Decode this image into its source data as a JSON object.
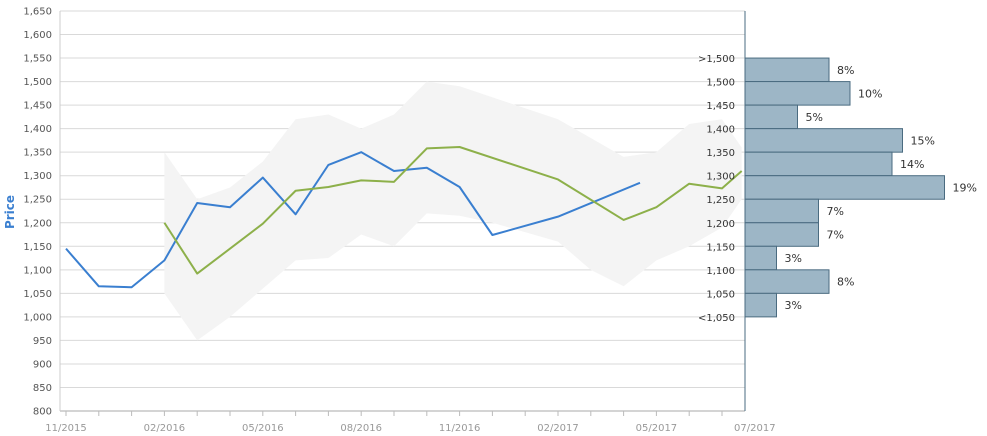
{
  "chart_data": {
    "type": "line",
    "ylabel": "Price",
    "ylim": [
      800,
      1650
    ],
    "yticks": [
      800,
      850,
      900,
      950,
      1000,
      1050,
      1100,
      1150,
      1200,
      1250,
      1300,
      1350,
      1400,
      1450,
      1500,
      1550,
      1600,
      1650
    ],
    "ytick_labels": [
      "800",
      "850",
      "900",
      "950",
      "1,000",
      "1,050",
      "1,100",
      "1,150",
      "1,200",
      "1,250",
      "1,300",
      "1,350",
      "1,400",
      "1,450",
      "1,500",
      "1,550",
      "1,600",
      "1,650"
    ],
    "xlim": [
      0,
      20
    ],
    "xticks": [
      {
        "x": 0,
        "label": "11/2015"
      },
      {
        "x": 3,
        "label": "02/2016"
      },
      {
        "x": 6,
        "label": "05/2016"
      },
      {
        "x": 9,
        "label": "08/2016"
      },
      {
        "x": 12,
        "label": "11/2016"
      },
      {
        "x": 15,
        "label": "02/2017"
      },
      {
        "x": 18,
        "label": "05/2017"
      },
      {
        "x": 21,
        "label": "07/2017"
      }
    ],
    "series": [
      {
        "color": "#3a7fd0",
        "points": [
          {
            "x": 0,
            "y": 1145
          },
          {
            "x": 1,
            "y": 1065
          },
          {
            "x": 2,
            "y": 1063
          },
          {
            "x": 3,
            "y": 1120
          },
          {
            "x": 4,
            "y": 1242
          },
          {
            "x": 5,
            "y": 1233
          },
          {
            "x": 6,
            "y": 1296
          },
          {
            "x": 7,
            "y": 1218
          },
          {
            "x": 8,
            "y": 1323
          },
          {
            "x": 9,
            "y": 1350
          },
          {
            "x": 10,
            "y": 1310
          },
          {
            "x": 11,
            "y": 1317
          },
          {
            "x": 12,
            "y": 1276
          },
          {
            "x": 13,
            "y": 1174
          },
          {
            "x": 15,
            "y": 1213
          },
          {
            "x": 17.5,
            "y": 1285
          }
        ]
      },
      {
        "color": "#8db04a",
        "points": [
          {
            "x": 3,
            "y": 1200
          },
          {
            "x": 4,
            "y": 1092
          },
          {
            "x": 6,
            "y": 1198
          },
          {
            "x": 7,
            "y": 1268
          },
          {
            "x": 8,
            "y": 1276
          },
          {
            "x": 9,
            "y": 1290
          },
          {
            "x": 10,
            "y": 1287
          },
          {
            "x": 11,
            "y": 1358
          },
          {
            "x": 12,
            "y": 1361
          },
          {
            "x": 15,
            "y": 1292
          },
          {
            "x": 17,
            "y": 1206
          },
          {
            "x": 18,
            "y": 1233
          },
          {
            "x": 19,
            "y": 1283
          },
          {
            "x": 20,
            "y": 1273
          },
          {
            "x": 20.6,
            "y": 1310
          }
        ]
      }
    ],
    "band": {
      "color": "#f4f4f4",
      "upper": [
        {
          "x": 3,
          "y": 1350
        },
        {
          "x": 4,
          "y": 1250
        },
        {
          "x": 5,
          "y": 1275
        },
        {
          "x": 6,
          "y": 1330
        },
        {
          "x": 7,
          "y": 1420
        },
        {
          "x": 8,
          "y": 1430
        },
        {
          "x": 9,
          "y": 1400
        },
        {
          "x": 10,
          "y": 1430
        },
        {
          "x": 11,
          "y": 1500
        },
        {
          "x": 12,
          "y": 1490
        },
        {
          "x": 15,
          "y": 1420
        },
        {
          "x": 16,
          "y": 1380
        },
        {
          "x": 17,
          "y": 1340
        },
        {
          "x": 18,
          "y": 1350
        },
        {
          "x": 19,
          "y": 1410
        },
        {
          "x": 20,
          "y": 1420
        },
        {
          "x": 20.6,
          "y": 1360
        }
      ],
      "lower": [
        {
          "x": 20.6,
          "y": 1250
        },
        {
          "x": 20,
          "y": 1190
        },
        {
          "x": 19,
          "y": 1150
        },
        {
          "x": 18,
          "y": 1120
        },
        {
          "x": 17,
          "y": 1065
        },
        {
          "x": 16,
          "y": 1100
        },
        {
          "x": 15,
          "y": 1160
        },
        {
          "x": 13,
          "y": 1200
        },
        {
          "x": 12,
          "y": 1215
        },
        {
          "x": 11,
          "y": 1220
        },
        {
          "x": 10,
          "y": 1150
        },
        {
          "x": 9,
          "y": 1175
        },
        {
          "x": 8,
          "y": 1125
        },
        {
          "x": 7,
          "y": 1120
        },
        {
          "x": 6,
          "y": 1060
        },
        {
          "x": 5,
          "y": 1000
        },
        {
          "x": 4,
          "y": 950
        },
        {
          "x": 3,
          "y": 1050
        }
      ]
    },
    "distribution": {
      "color": "#9db6c6",
      "border": "#4a6b80",
      "bins": [
        {
          "label": ">1,500",
          "low": 1500,
          "high": 1550,
          "pct": 8,
          "pct_label": "8%"
        },
        {
          "label": "1,500",
          "low": 1450,
          "high": 1500,
          "pct": 10,
          "pct_label": "10%"
        },
        {
          "label": "1,450",
          "low": 1400,
          "high": 1450,
          "pct": 5,
          "pct_label": "5%"
        },
        {
          "label": "1,400",
          "low": 1350,
          "high": 1400,
          "pct": 15,
          "pct_label": "15%"
        },
        {
          "label": "1,350",
          "low": 1300,
          "high": 1350,
          "pct": 14,
          "pct_label": "14%"
        },
        {
          "label": "1,300",
          "low": 1250,
          "high": 1300,
          "pct": 19,
          "pct_label": "19%"
        },
        {
          "label": "1,250",
          "low": 1200,
          "high": 1250,
          "pct": 7,
          "pct_label": "7%"
        },
        {
          "label": "1,200",
          "low": 1150,
          "high": 1200,
          "pct": 7,
          "pct_label": "7%"
        },
        {
          "label": "1,150",
          "low": 1100,
          "high": 1150,
          "pct": 3,
          "pct_label": "3%"
        },
        {
          "label": "1,100",
          "low": 1050,
          "high": 1100,
          "pct": 8,
          "pct_label": "8%"
        },
        {
          "label": "1,050",
          "low": 1000,
          "high": 1050,
          "pct": 3,
          "pct_label": "3%"
        },
        {
          "label": "<1,050",
          "low": 1000,
          "high": 1000,
          "pct": 0,
          "pct_label": ""
        }
      ]
    }
  }
}
